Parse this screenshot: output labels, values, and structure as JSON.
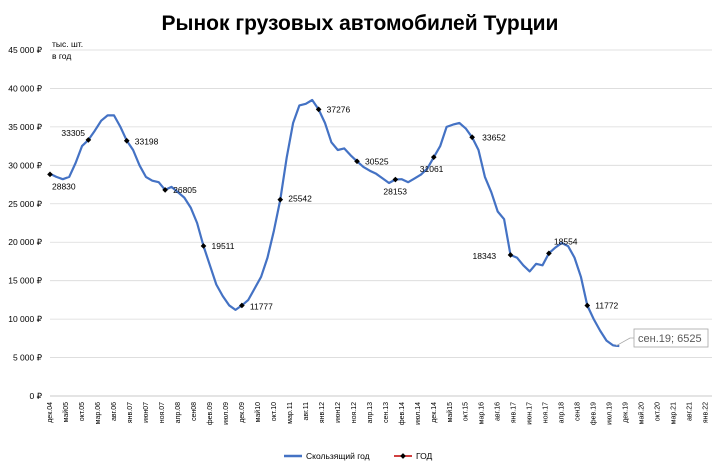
{
  "chart_data": {
    "type": "line",
    "title": "Рынок грузовых автомобилей Турции",
    "unit_label": [
      "тыс. шт.",
      "в год"
    ],
    "ylim": [
      0,
      45000
    ],
    "y_ticks": [
      0,
      5000,
      10000,
      15000,
      20000,
      25000,
      30000,
      35000,
      40000,
      45000
    ],
    "y_tick_labels": [
      "0 ₽",
      "5 000 ₽",
      "10 000 ₽",
      "15 000 ₽",
      "20 000 ₽",
      "25 000 ₽",
      "30 000 ₽",
      "35 000 ₽",
      "40 000 ₽",
      "45 000 ₽"
    ],
    "x_start": "2004-12",
    "x_end": "2022-03",
    "x_tick_labels": [
      "дек.04",
      "май05",
      "окт.05",
      "мар.06",
      "авг.06",
      "янв.07",
      "июн07",
      "ноя.07",
      "апр.08",
      "сен08",
      "фев.09",
      "июл.09",
      "дек.09",
      "май10",
      "окт.10",
      "мар.11",
      "авг.11",
      "янв.12",
      "июн12",
      "ноя.12",
      "апр.13",
      "сен.13",
      "фев.14",
      "июл.14",
      "дек.14",
      "май15",
      "окт.15",
      "мар.16",
      "авг.16",
      "янв.17",
      "июн.17",
      "ноя.17",
      "апр.18",
      "сен18",
      "фев.19",
      "июл.19",
      "дек.19",
      "май.20",
      "окт.20",
      "мар.21",
      "авг.21",
      "янв.22"
    ],
    "series": [
      {
        "name": "Скользящий год",
        "color": "#4472C4",
        "points": [
          [
            "2004-12",
            28900
          ],
          [
            "2005-02",
            28500
          ],
          [
            "2005-04",
            28200
          ],
          [
            "2005-06",
            28500
          ],
          [
            "2005-08",
            30300
          ],
          [
            "2005-10",
            32500
          ],
          [
            "2005-12",
            33305
          ],
          [
            "2006-02",
            34500
          ],
          [
            "2006-04",
            35800
          ],
          [
            "2006-06",
            36500
          ],
          [
            "2006-08",
            36500
          ],
          [
            "2006-10",
            35000
          ],
          [
            "2006-12",
            33198
          ],
          [
            "2007-02",
            32000
          ],
          [
            "2007-04",
            30000
          ],
          [
            "2007-06",
            28500
          ],
          [
            "2007-08",
            28000
          ],
          [
            "2007-10",
            27800
          ],
          [
            "2007-12",
            26805
          ],
          [
            "2008-02",
            27200
          ],
          [
            "2008-04",
            26500
          ],
          [
            "2008-06",
            25800
          ],
          [
            "2008-08",
            24500
          ],
          [
            "2008-10",
            22500
          ],
          [
            "2008-12",
            19511
          ],
          [
            "2009-02",
            17000
          ],
          [
            "2009-04",
            14500
          ],
          [
            "2009-06",
            13000
          ],
          [
            "2009-08",
            11800
          ],
          [
            "2009-10",
            11200
          ],
          [
            "2009-12",
            11777
          ],
          [
            "2010-02",
            12500
          ],
          [
            "2010-04",
            14000
          ],
          [
            "2010-06",
            15500
          ],
          [
            "2010-08",
            18000
          ],
          [
            "2010-10",
            21500
          ],
          [
            "2010-12",
            25542
          ],
          [
            "2011-02",
            31000
          ],
          [
            "2011-04",
            35500
          ],
          [
            "2011-06",
            37800
          ],
          [
            "2011-08",
            38000
          ],
          [
            "2011-10",
            38500
          ],
          [
            "2011-12",
            37276
          ],
          [
            "2012-02",
            35500
          ],
          [
            "2012-04",
            33000
          ],
          [
            "2012-06",
            32000
          ],
          [
            "2012-08",
            32200
          ],
          [
            "2012-10",
            31300
          ],
          [
            "2012-12",
            30525
          ],
          [
            "2013-02",
            29800
          ],
          [
            "2013-04",
            29300
          ],
          [
            "2013-06",
            28900
          ],
          [
            "2013-08",
            28300
          ],
          [
            "2013-10",
            27700
          ],
          [
            "2013-12",
            28153
          ],
          [
            "2014-02",
            28200
          ],
          [
            "2014-04",
            27800
          ],
          [
            "2014-06",
            28300
          ],
          [
            "2014-08",
            28800
          ],
          [
            "2014-10",
            29600
          ],
          [
            "2014-12",
            31061
          ],
          [
            "2015-02",
            32500
          ],
          [
            "2015-04",
            35000
          ],
          [
            "2015-06",
            35300
          ],
          [
            "2015-08",
            35500
          ],
          [
            "2015-10",
            34800
          ],
          [
            "2015-12",
            33652
          ],
          [
            "2016-02",
            32000
          ],
          [
            "2016-04",
            28500
          ],
          [
            "2016-06",
            26500
          ],
          [
            "2016-08",
            24000
          ],
          [
            "2016-10",
            23000
          ],
          [
            "2016-12",
            18343
          ],
          [
            "2017-02",
            18000
          ],
          [
            "2017-04",
            17000
          ],
          [
            "2017-06",
            16200
          ],
          [
            "2017-08",
            17200
          ],
          [
            "2017-10",
            17000
          ],
          [
            "2017-12",
            18554
          ],
          [
            "2018-02",
            19300
          ],
          [
            "2018-04",
            19900
          ],
          [
            "2018-06",
            19500
          ],
          [
            "2018-08",
            18000
          ],
          [
            "2018-10",
            15500
          ],
          [
            "2018-12",
            11772
          ],
          [
            "2019-02",
            10000
          ],
          [
            "2019-04",
            8500
          ],
          [
            "2019-06",
            7200
          ],
          [
            "2019-08",
            6600
          ],
          [
            "2019-09",
            6525
          ],
          [
            "2019-10",
            6500
          ]
        ]
      },
      {
        "name": "ГОД",
        "color": "#C00000",
        "marker_color": "#000000",
        "points": [
          [
            "2004-12",
            28830
          ],
          [
            "2005-12",
            33305
          ],
          [
            "2006-12",
            33198
          ],
          [
            "2007-12",
            26805
          ],
          [
            "2008-12",
            19511
          ],
          [
            "2009-12",
            11777
          ],
          [
            "2010-12",
            25542
          ],
          [
            "2011-12",
            37276
          ],
          [
            "2012-12",
            30525
          ],
          [
            "2013-12",
            28153
          ],
          [
            "2014-12",
            31061
          ],
          [
            "2015-12",
            33652
          ],
          [
            "2016-12",
            18343
          ],
          [
            "2017-12",
            18554
          ],
          [
            "2018-12",
            11772
          ]
        ]
      }
    ],
    "data_labels": [
      "28830",
      "33305",
      "33198",
      "26805",
      "19511",
      "11777",
      "25542",
      "37276",
      "30525",
      "28153",
      "31061",
      "33652",
      "18343",
      "18554",
      "11772"
    ],
    "callout": "сен.19; 6525",
    "grid": true,
    "legend": "bottom",
    "legend_entries": [
      "Скользящий год",
      "ГОД"
    ]
  }
}
